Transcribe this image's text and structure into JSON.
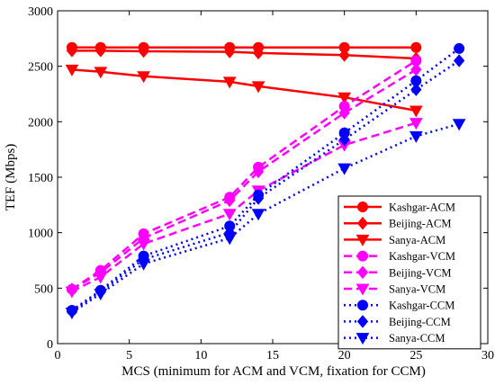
{
  "chart_data": {
    "type": "line",
    "xlabel": "MCS (minimum for ACM and VCM, fixation for CCM)",
    "ylabel": "TEF (Mbps)",
    "xlim": [
      0,
      30
    ],
    "ylim": [
      0,
      3000
    ],
    "xticks": [
      0,
      5,
      10,
      15,
      20,
      25,
      30
    ],
    "yticks": [
      0,
      500,
      1000,
      1500,
      2000,
      2500,
      3000
    ],
    "grid": false,
    "legend_position": "bottom-right",
    "series": [
      {
        "name": "Kashgar-ACM",
        "color": "#ff0000",
        "style": "solid",
        "marker": "circle",
        "x": [
          1,
          3,
          6,
          12,
          14,
          20,
          25
        ],
        "y": [
          2670,
          2670,
          2670,
          2670,
          2670,
          2670,
          2670
        ]
      },
      {
        "name": "Beijing-ACM",
        "color": "#ff0000",
        "style": "solid",
        "marker": "diamond",
        "x": [
          1,
          3,
          6,
          12,
          14,
          20,
          25
        ],
        "y": [
          2640,
          2640,
          2635,
          2630,
          2620,
          2600,
          2570
        ]
      },
      {
        "name": "Sanya-ACM",
        "color": "#ff0000",
        "style": "solid",
        "marker": "triangle-down",
        "x": [
          1,
          3,
          6,
          12,
          14,
          20,
          25
        ],
        "y": [
          2470,
          2450,
          2410,
          2360,
          2320,
          2220,
          2100
        ]
      },
      {
        "name": "Kashgar-VCM",
        "color": "#ff00ff",
        "style": "dashed",
        "marker": "circle",
        "x": [
          1,
          3,
          6,
          12,
          14,
          20,
          25
        ],
        "y": [
          490,
          660,
          990,
          1320,
          1590,
          2140,
          2550
        ]
      },
      {
        "name": "Beijing-VCM",
        "color": "#ff00ff",
        "style": "dashed",
        "marker": "diamond",
        "x": [
          1,
          3,
          6,
          12,
          14,
          20,
          25
        ],
        "y": [
          490,
          640,
          950,
          1290,
          1550,
          2080,
          2470
        ]
      },
      {
        "name": "Sanya-VCM",
        "color": "#ff00ff",
        "style": "dashed",
        "marker": "triangle-down",
        "x": [
          1,
          3,
          6,
          12,
          14,
          20,
          25
        ],
        "y": [
          470,
          600,
          900,
          1170,
          1380,
          1790,
          1990
        ]
      },
      {
        "name": "Kashgar-CCM",
        "color": "#0000ff",
        "style": "dotted",
        "marker": "circle",
        "x": [
          1,
          3,
          6,
          12,
          14,
          20,
          25,
          28
        ],
        "y": [
          300,
          480,
          790,
          1060,
          1340,
          1900,
          2370,
          2660
        ]
      },
      {
        "name": "Beijing-CCM",
        "color": "#0000ff",
        "style": "dotted",
        "marker": "diamond",
        "x": [
          1,
          3,
          6,
          12,
          14,
          20,
          25,
          28
        ],
        "y": [
          290,
          470,
          760,
          1000,
          1310,
          1840,
          2290,
          2550
        ]
      },
      {
        "name": "Sanya-CCM",
        "color": "#0000ff",
        "style": "dotted",
        "marker": "triangle-down",
        "x": [
          1,
          3,
          6,
          12,
          14,
          20,
          25,
          28
        ],
        "y": [
          280,
          450,
          720,
          950,
          1170,
          1580,
          1870,
          1980
        ]
      }
    ]
  }
}
